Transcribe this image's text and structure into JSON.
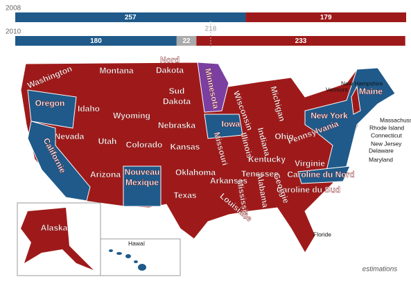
{
  "bars": [
    {
      "label": "2008",
      "segments": [
        {
          "value": 257,
          "color": "#1f5a8a"
        },
        {
          "value": 179,
          "color": "#9e1a1a"
        }
      ]
    },
    {
      "label": "2010",
      "segments": [
        {
          "value": 180,
          "color": "#1f5a8a"
        },
        {
          "value": 22,
          "color": "#aaaaaa"
        },
        {
          "value": 233,
          "color": "#9e1a1a"
        }
      ]
    }
  ],
  "majority": 218,
  "states": [
    {
      "lines": [
        "Washington"
      ]
    },
    {
      "lines": [
        "Montana"
      ]
    },
    {
      "lines": [
        "Nord",
        "Dakota"
      ]
    },
    {
      "lines": [
        "Minnesota"
      ]
    },
    {
      "lines": [
        "Wisconsin"
      ]
    },
    {
      "lines": [
        "Michigan"
      ]
    },
    {
      "lines": [
        "Oregon"
      ]
    },
    {
      "lines": [
        "Idaho"
      ]
    },
    {
      "lines": [
        "Wyoming"
      ]
    },
    {
      "lines": [
        "Sud",
        "Dakota"
      ]
    },
    {
      "lines": [
        "Nebraska"
      ]
    },
    {
      "lines": [
        "Iowa"
      ]
    },
    {
      "lines": [
        "Illinois"
      ]
    },
    {
      "lines": [
        "Indiana"
      ]
    },
    {
      "lines": [
        "Ohio"
      ]
    },
    {
      "lines": [
        "Pennsylvania"
      ]
    },
    {
      "lines": [
        "New York"
      ]
    },
    {
      "lines": [
        "Maine"
      ]
    },
    {
      "lines": [
        "Nevada"
      ]
    },
    {
      "lines": [
        "Utah"
      ]
    },
    {
      "lines": [
        "Colorado"
      ]
    },
    {
      "lines": [
        "Kansas"
      ]
    },
    {
      "lines": [
        "Missouri"
      ]
    },
    {
      "lines": [
        "Californie"
      ]
    },
    {
      "lines": [
        "Arizona"
      ]
    },
    {
      "lines": [
        "Nouveau",
        "Mexique"
      ]
    },
    {
      "lines": [
        "Oklahoma"
      ]
    },
    {
      "lines": [
        "Arkansas"
      ]
    },
    {
      "lines": [
        "Tenessee"
      ]
    },
    {
      "lines": [
        "Kentucky"
      ]
    },
    {
      "lines": [
        "Virginie"
      ]
    },
    {
      "lines": [
        "Caroline du Nord"
      ]
    },
    {
      "lines": [
        "Caroline du Sud"
      ]
    },
    {
      "lines": [
        "Georgie"
      ]
    },
    {
      "lines": [
        "Alabama"
      ]
    },
    {
      "lines": [
        "Mississipi"
      ]
    },
    {
      "lines": [
        "Louisiane"
      ]
    },
    {
      "lines": [
        "Texas"
      ]
    },
    {
      "lines": [
        "Floride"
      ]
    },
    {
      "lines": [
        "Alaska"
      ]
    },
    {
      "lines": [
        "Hawaï"
      ]
    },
    {
      "lines": [
        "New Hampshire"
      ]
    },
    {
      "lines": [
        "Vermont"
      ]
    },
    {
      "lines": [
        "Massachussetts"
      ]
    },
    {
      "lines": [
        "Rhode Island"
      ]
    },
    {
      "lines": [
        "Connecticut"
      ]
    },
    {
      "lines": [
        "New Jersey"
      ]
    },
    {
      "lines": [
        "Delaware"
      ]
    },
    {
      "lines": [
        "Maryland"
      ]
    }
  ],
  "note": "estimations"
}
